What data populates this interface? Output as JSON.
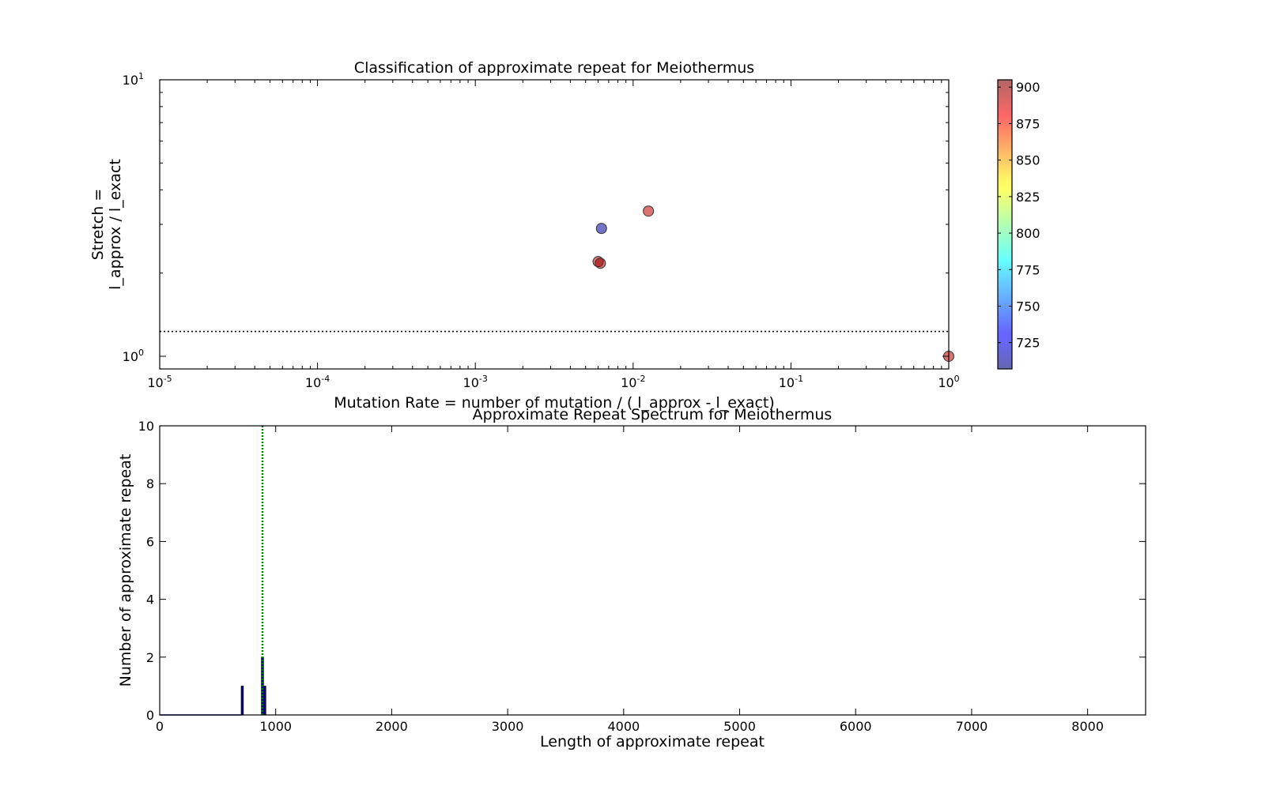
{
  "chart_data": [
    {
      "type": "scatter",
      "title": "Classification of approximate repeat for Meiothermus",
      "xlabel": "Mutation Rate = number of mutation / ( l_approx - l_exact)",
      "ylabel_line1": "Stretch =",
      "ylabel_line2": "l_approx / l_exact",
      "xscale": "log",
      "yscale": "log",
      "xlim": [
        1e-05,
        1
      ],
      "ylim": [
        0.9,
        10
      ],
      "x_ticks": [
        {
          "value": 1e-05,
          "base": "10",
          "exp": "-5"
        },
        {
          "value": 0.0001,
          "base": "10",
          "exp": "-4"
        },
        {
          "value": 0.001,
          "base": "10",
          "exp": "-3"
        },
        {
          "value": 0.01,
          "base": "10",
          "exp": "-2"
        },
        {
          "value": 0.1,
          "base": "10",
          "exp": "-1"
        },
        {
          "value": 1,
          "base": "10",
          "exp": "0"
        }
      ],
      "y_ticks": [
        {
          "value": 1,
          "base": "10",
          "exp": "0"
        },
        {
          "value": 10,
          "base": "10",
          "exp": "1"
        }
      ],
      "threshold_line": {
        "y": 1.23,
        "style": "dotted"
      },
      "points": [
        {
          "x": 0.0063,
          "y": 2.9,
          "c": 712
        },
        {
          "x": 0.0125,
          "y": 3.35,
          "c": 893
        },
        {
          "x": 0.006,
          "y": 2.2,
          "c": 893
        },
        {
          "x": 0.0062,
          "y": 2.17,
          "c": 900
        },
        {
          "x": 1.0,
          "y": 1.0,
          "c": 893
        }
      ],
      "colorbar": {
        "colormap": "jet",
        "min": 707,
        "max": 905,
        "ticks": [
          725,
          750,
          775,
          800,
          825,
          850,
          875,
          900
        ]
      },
      "grid": false
    },
    {
      "type": "bar",
      "title": "Approximate Repeat Spectrum for Meiothermus",
      "xlabel": "Length of approximate repeat",
      "ylabel": "Number of approximate repeat",
      "xlim": [
        0,
        8500
      ],
      "ylim": [
        0,
        10
      ],
      "x_ticks": [
        0,
        1000,
        2000,
        3000,
        4000,
        5000,
        6000,
        7000,
        8000
      ],
      "y_ticks": [
        0,
        2,
        4,
        6,
        8,
        10
      ],
      "bars": [
        {
          "x": 712,
          "value": 1
        },
        {
          "x": 886,
          "value": 2
        },
        {
          "x": 906,
          "value": 1
        }
      ],
      "bar_color": "#000080",
      "vertical_line": {
        "x": 886,
        "style": "dotted",
        "color": "#008000"
      },
      "grid": false
    }
  ]
}
